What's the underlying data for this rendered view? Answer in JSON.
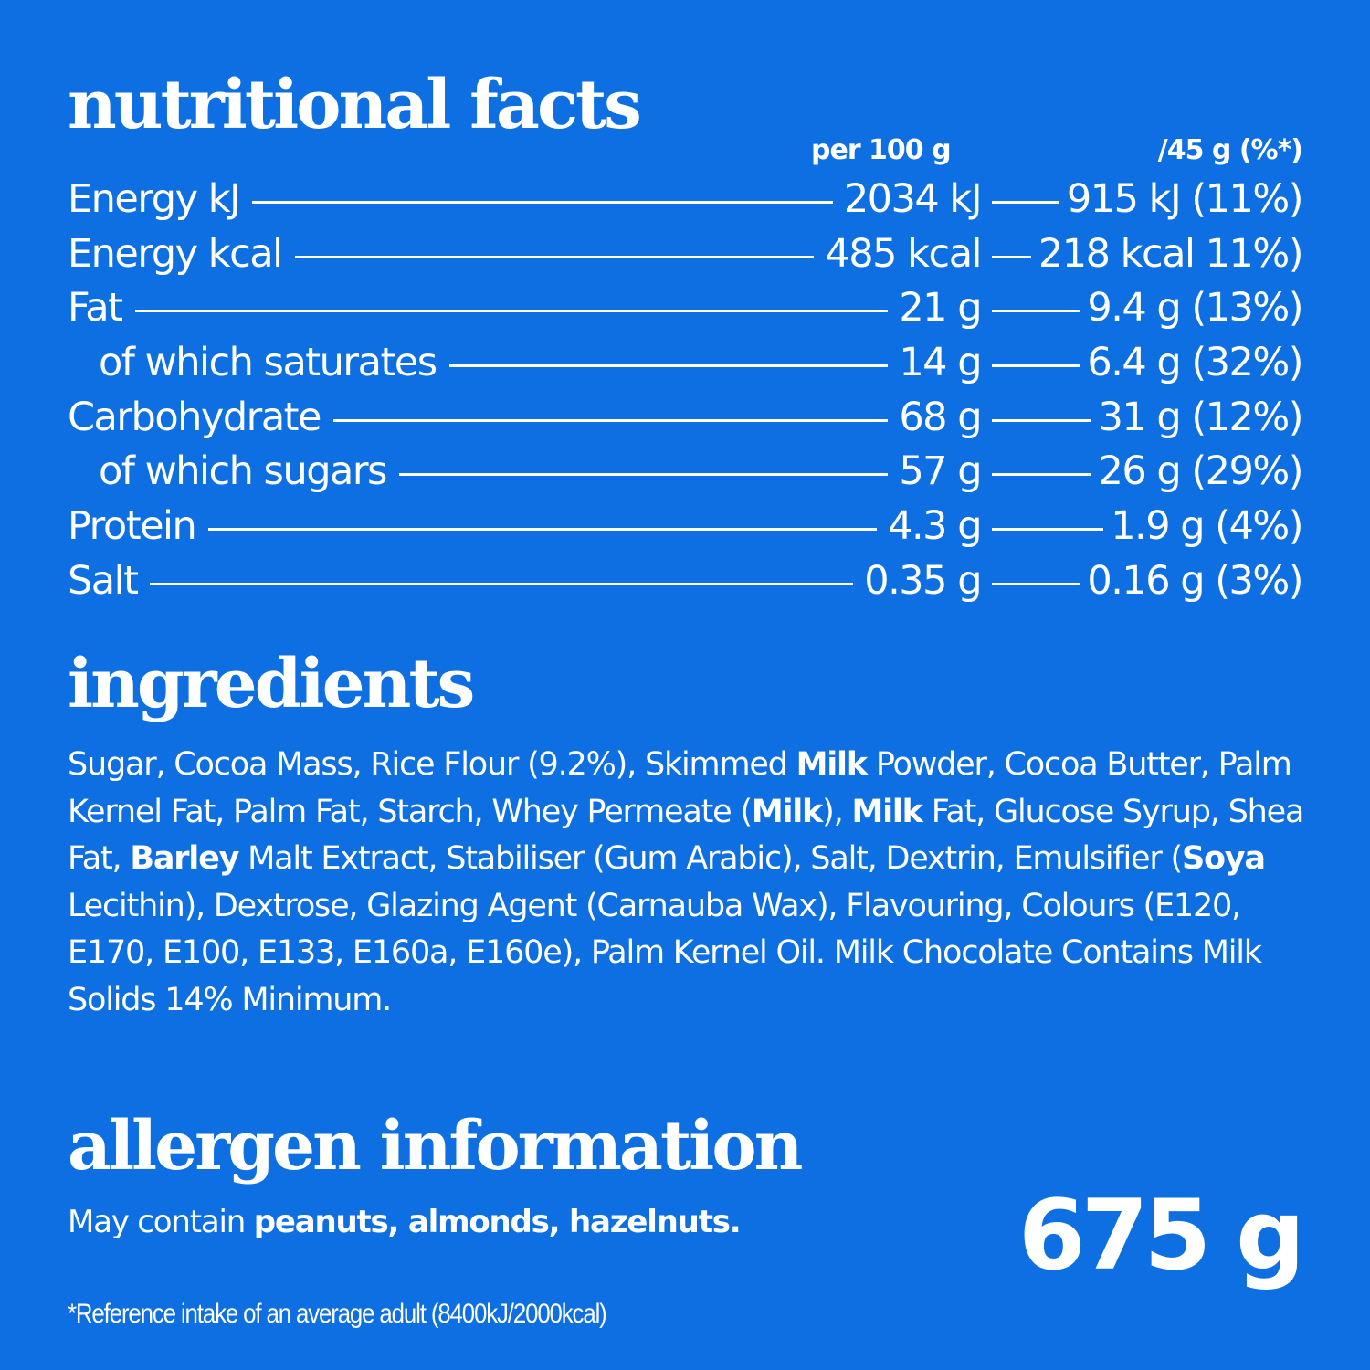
{
  "colors": {
    "background": "#0d6fe1",
    "text": "#ffffff"
  },
  "nutrition": {
    "heading": "nutritional facts",
    "col_per_100": "per 100 g",
    "col_per_45": "/45 g (%*)",
    "rows": [
      {
        "label": "Energy kJ",
        "per100": "2034 kJ",
        "per45": "915 kJ (11%)",
        "sub": false
      },
      {
        "label": "Energy kcal",
        "per100": "485 kcal",
        "per45": "218 kcal 11%)",
        "sub": false
      },
      {
        "label": "Fat",
        "per100": "21 g",
        "per45": "9.4 g (13%)",
        "sub": false
      },
      {
        "label": "of which saturates",
        "per100": "14 g",
        "per45": "6.4 g (32%)",
        "sub": true
      },
      {
        "label": "Carbohydrate",
        "per100": "68 g",
        "per45": "31 g (12%)",
        "sub": false
      },
      {
        "label": "of which sugars",
        "per100": "57 g",
        "per45": "26 g (29%)",
        "sub": true
      },
      {
        "label": "Protein",
        "per100": "4.3 g",
        "per45": "1.9 g (4%)",
        "sub": false
      },
      {
        "label": "Salt",
        "per100": "0.35 g",
        "per45": "0.16 g (3%)",
        "sub": false
      }
    ]
  },
  "ingredients": {
    "heading": "ingredients",
    "segments": [
      {
        "text": "Sugar, Cocoa Mass, Rice Flour (9.2%), Skimmed ",
        "bold": false
      },
      {
        "text": "Milk",
        "bold": true
      },
      {
        "text": " Powder, Cocoa Butter, Palm Kernel  Fat, Palm Fat, Starch, Whey Permeate (",
        "bold": false
      },
      {
        "text": "Milk",
        "bold": true
      },
      {
        "text": "), ",
        "bold": false
      },
      {
        "text": "Milk",
        "bold": true
      },
      {
        "text": " Fat, Glucose Syrup, Shea Fat, ",
        "bold": false
      },
      {
        "text": "Barley",
        "bold": true
      },
      {
        "text": " Malt Extract, Stabiliser (Gum Arabic), Salt, Dextrin, Emulsifier (",
        "bold": false
      },
      {
        "text": "Soya",
        "bold": true
      },
      {
        "text": " Lecithin), Dextrose, Glazing Agent (Carnauba Wax), Flavouring, Colours (E120, E170, E100, E133, E160a, E160e), Palm Kernel Oil.  Milk Chocolate Contains Milk Solids 14% Minimum.",
        "bold": false
      }
    ]
  },
  "allergen": {
    "heading": "allergen information",
    "prefix": "May contain ",
    "items": "peanuts, almonds, hazelnuts."
  },
  "net_weight": "675 g",
  "footnote": "*Reference intake of an average adult (8400kJ/2000kcal)"
}
